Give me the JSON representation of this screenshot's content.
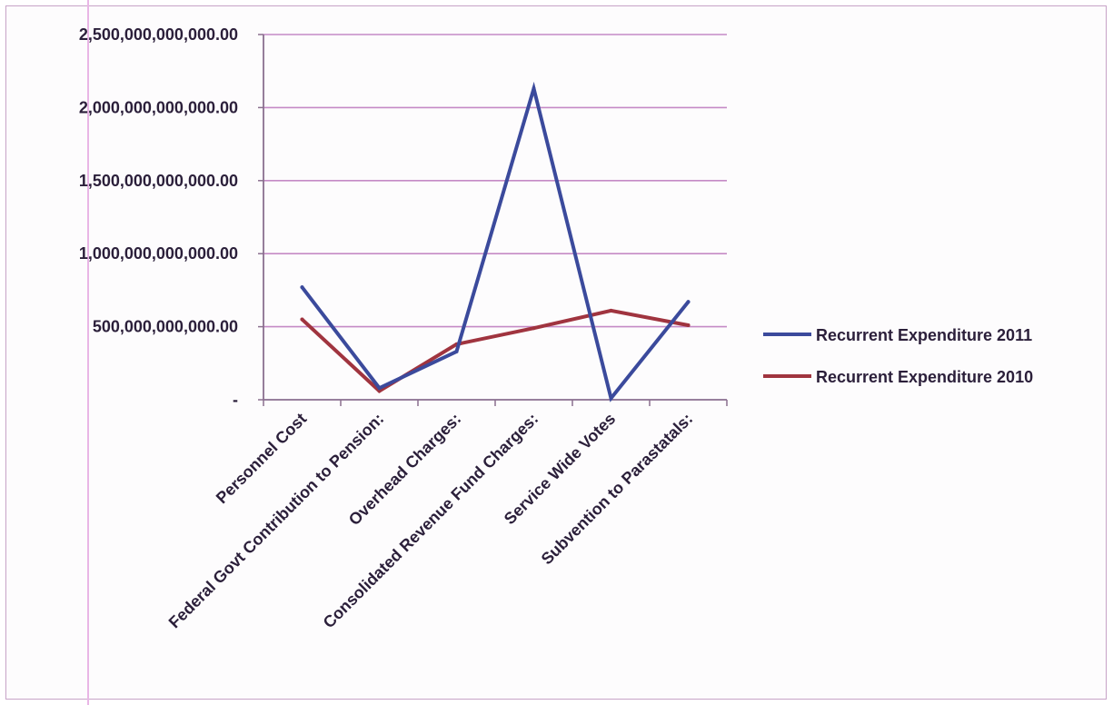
{
  "chart_data": {
    "type": "line",
    "categories": [
      "Personnel Cost",
      "Federal Govt Contribution to Pension:",
      "Overhead Charges:",
      "Consolidated Revenue Fund Charges:",
      "Service Wide Votes",
      "Subvention to Parastatals:"
    ],
    "series": [
      {
        "name": "Recurrent Expenditure 2011",
        "color": "#3b4a9c",
        "values": [
          770000000000,
          80000000000,
          330000000000,
          2130000000000,
          10000000000,
          670000000000
        ]
      },
      {
        "name": "Recurrent Expenditure 2010",
        "color": "#a0343f",
        "values": [
          550000000000,
          60000000000,
          380000000000,
          490000000000,
          610000000000,
          510000000000
        ]
      }
    ],
    "ylim": [
      0,
      2500000000000
    ],
    "yticks": [
      0,
      500000000000,
      1000000000000,
      1500000000000,
      2000000000000,
      2500000000000
    ],
    "ytick_labels": [
      "-",
      "500,000,000,000.00",
      "1,000,000,000,000.00",
      "1,500,000,000,000.00",
      "2,000,000,000,000.00",
      "2,500,000,000,000.00"
    ],
    "grid": true,
    "gridline_color": "#c58ac6",
    "legend_position": "right"
  }
}
